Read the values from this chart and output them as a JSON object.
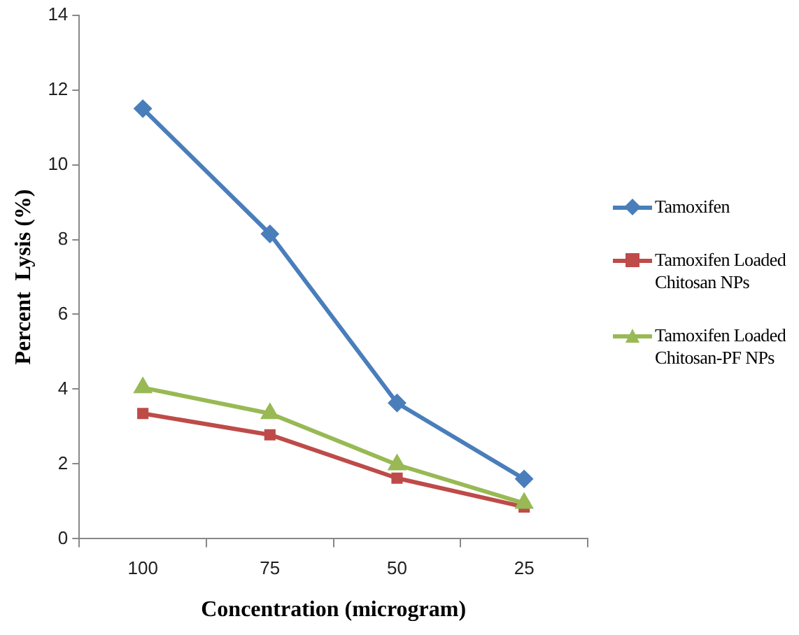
{
  "chart_data": {
    "type": "line",
    "xlabel": "Concentration (microgram)",
    "ylabel": "Percent  Lysis (%)",
    "categories": [
      "100",
      "75",
      "50",
      "25"
    ],
    "series": [
      {
        "name": "Tamoxifen",
        "color": "#4a7ebb",
        "marker": "diamond",
        "values": [
          11.5,
          8.15,
          3.63,
          1.6
        ]
      },
      {
        "name": "Tamoxifen Loaded Chitosan NPs",
        "color": "#be4b48",
        "marker": "square",
        "values": [
          3.35,
          2.78,
          1.62,
          0.85
        ]
      },
      {
        "name": "Tamoxifen Loaded Chitosan-PF NPs",
        "color": "#98b954",
        "marker": "triangle",
        "values": [
          4.04,
          3.35,
          1.98,
          0.95
        ]
      }
    ],
    "ylim": [
      0,
      14
    ],
    "yticks": [
      0,
      2,
      4,
      6,
      8,
      10,
      12,
      14
    ],
    "grid": false,
    "legend": "right",
    "line_style": "solid"
  }
}
